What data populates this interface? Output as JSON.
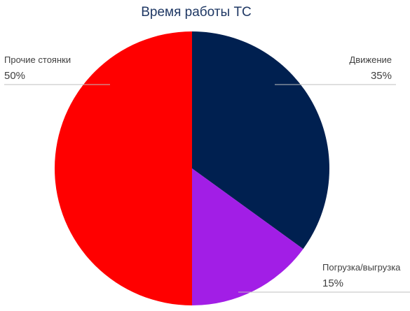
{
  "chart_data": {
    "type": "pie",
    "title": "Время работы ТС",
    "start_angle_deg": 0,
    "direction": "clockwise",
    "slices": [
      {
        "label": "Движение",
        "value": 35,
        "value_label": "35%",
        "color": "#002050"
      },
      {
        "label": "Погрузка/выгрузка",
        "value": 15,
        "value_label": "15%",
        "color": "#a21ee6"
      },
      {
        "label": "Прочие стоянки",
        "value": 50,
        "value_label": "50%",
        "color": "#ff0000"
      }
    ]
  }
}
